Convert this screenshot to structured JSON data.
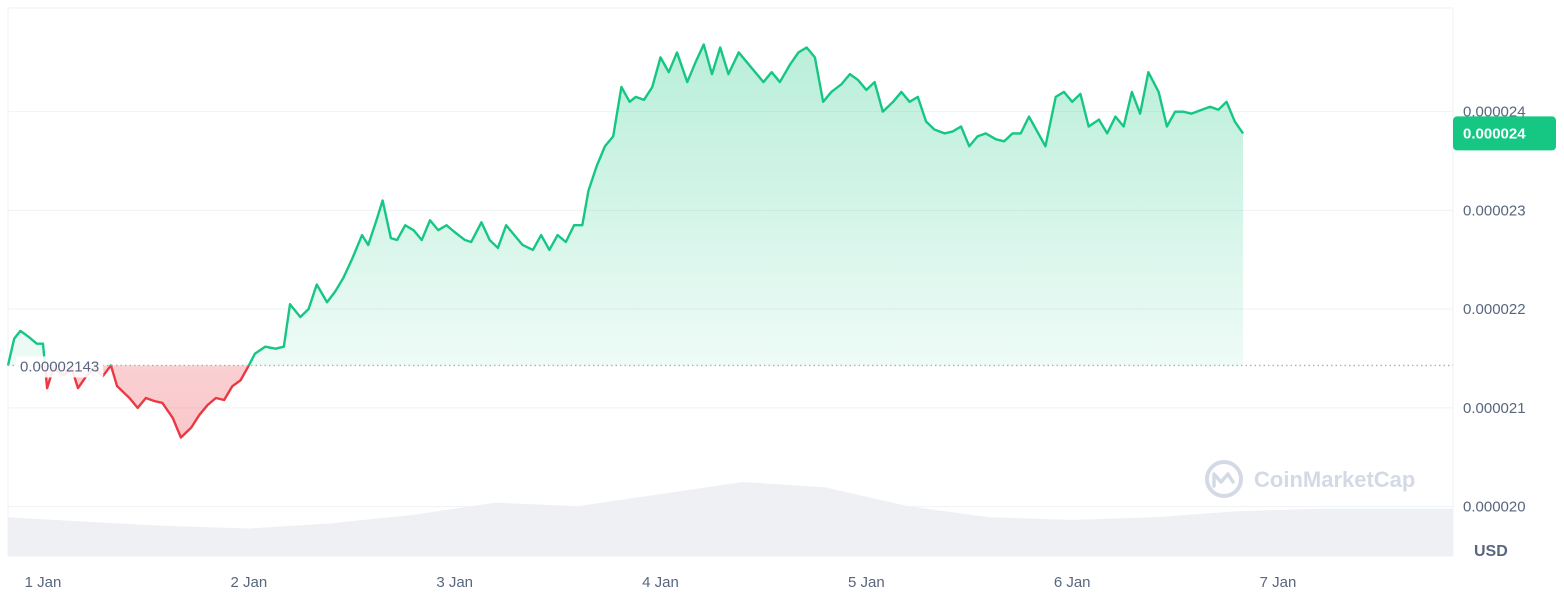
{
  "chart_data": {
    "type": "area",
    "x_labels": [
      "1 Jan",
      "2 Jan",
      "3 Jan",
      "4 Jan",
      "5 Jan",
      "6 Jan",
      "7 Jan"
    ],
    "x_range_days": [
      0.83,
      7.85
    ],
    "y_ticks": [
      "0.000020",
      "0.000021",
      "0.000022",
      "0.000023",
      "0.000024"
    ],
    "ylim": [
      1.95e-05,
      2.505e-05
    ],
    "reference_price": 2.143e-05,
    "reference_label": "0.00002143",
    "current_price_label": "0.000024",
    "unit": "USD",
    "grid": true,
    "price_series": [
      [
        0.83,
        2.143e-05
      ],
      [
        0.86,
        2.17e-05
      ],
      [
        0.89,
        2.178e-05
      ],
      [
        0.93,
        2.172e-05
      ],
      [
        0.97,
        2.165e-05
      ],
      [
        1.0,
        2.165e-05
      ],
      [
        1.02,
        2.12e-05
      ],
      [
        1.05,
        2.14e-05
      ],
      [
        1.1,
        2.133e-05
      ],
      [
        1.14,
        2.14e-05
      ],
      [
        1.17,
        2.12e-05
      ],
      [
        1.21,
        2.132e-05
      ],
      [
        1.25,
        2.14e-05
      ],
      [
        1.29,
        2.132e-05
      ],
      [
        1.33,
        2.143e-05
      ],
      [
        1.36,
        2.122e-05
      ],
      [
        1.42,
        2.11e-05
      ],
      [
        1.46,
        2.1e-05
      ],
      [
        1.5,
        2.11e-05
      ],
      [
        1.54,
        2.107e-05
      ],
      [
        1.58,
        2.105e-05
      ],
      [
        1.63,
        2.09e-05
      ],
      [
        1.67,
        2.07e-05
      ],
      [
        1.72,
        2.08e-05
      ],
      [
        1.76,
        2.093e-05
      ],
      [
        1.8,
        2.103e-05
      ],
      [
        1.84,
        2.11e-05
      ],
      [
        1.88,
        2.108e-05
      ],
      [
        1.92,
        2.122e-05
      ],
      [
        1.96,
        2.128e-05
      ],
      [
        2.0,
        2.143e-05
      ],
      [
        2.03,
        2.155e-05
      ],
      [
        2.08,
        2.162e-05
      ],
      [
        2.13,
        2.16e-05
      ],
      [
        2.17,
        2.162e-05
      ],
      [
        2.2,
        2.205e-05
      ],
      [
        2.25,
        2.192e-05
      ],
      [
        2.29,
        2.2e-05
      ],
      [
        2.33,
        2.225e-05
      ],
      [
        2.38,
        2.207e-05
      ],
      [
        2.42,
        2.218e-05
      ],
      [
        2.46,
        2.232e-05
      ],
      [
        2.5,
        2.25e-05
      ],
      [
        2.55,
        2.275e-05
      ],
      [
        2.58,
        2.265e-05
      ],
      [
        2.62,
        2.29e-05
      ],
      [
        2.65,
        2.31e-05
      ],
      [
        2.69,
        2.272e-05
      ],
      [
        2.72,
        2.27e-05
      ],
      [
        2.76,
        2.285e-05
      ],
      [
        2.8,
        2.28e-05
      ],
      [
        2.84,
        2.27e-05
      ],
      [
        2.88,
        2.29e-05
      ],
      [
        2.92,
        2.28e-05
      ],
      [
        2.96,
        2.285e-05
      ],
      [
        3.0,
        2.278e-05
      ],
      [
        3.05,
        2.27e-05
      ],
      [
        3.08,
        2.268e-05
      ],
      [
        3.13,
        2.288e-05
      ],
      [
        3.17,
        2.27e-05
      ],
      [
        3.21,
        2.262e-05
      ],
      [
        3.25,
        2.285e-05
      ],
      [
        3.29,
        2.275e-05
      ],
      [
        3.33,
        2.265e-05
      ],
      [
        3.38,
        2.26e-05
      ],
      [
        3.42,
        2.275e-05
      ],
      [
        3.46,
        2.26e-05
      ],
      [
        3.5,
        2.275e-05
      ],
      [
        3.54,
        2.268e-05
      ],
      [
        3.58,
        2.285e-05
      ],
      [
        3.62,
        2.285e-05
      ],
      [
        3.65,
        2.32e-05
      ],
      [
        3.69,
        2.345e-05
      ],
      [
        3.73,
        2.365e-05
      ],
      [
        3.77,
        2.375e-05
      ],
      [
        3.81,
        2.425e-05
      ],
      [
        3.85,
        2.41e-05
      ],
      [
        3.88,
        2.415e-05
      ],
      [
        3.92,
        2.412e-05
      ],
      [
        3.96,
        2.425e-05
      ],
      [
        4.0,
        2.455e-05
      ],
      [
        4.04,
        2.44e-05
      ],
      [
        4.08,
        2.46e-05
      ],
      [
        4.13,
        2.43e-05
      ],
      [
        4.17,
        2.45e-05
      ],
      [
        4.21,
        2.468e-05
      ],
      [
        4.25,
        2.438e-05
      ],
      [
        4.29,
        2.465e-05
      ],
      [
        4.33,
        2.438e-05
      ],
      [
        4.38,
        2.46e-05
      ],
      [
        4.42,
        2.45e-05
      ],
      [
        4.46,
        2.44e-05
      ],
      [
        4.5,
        2.43e-05
      ],
      [
        4.54,
        2.44e-05
      ],
      [
        4.58,
        2.43e-05
      ],
      [
        4.63,
        2.448e-05
      ],
      [
        4.67,
        2.46e-05
      ],
      [
        4.71,
        2.465e-05
      ],
      [
        4.75,
        2.455e-05
      ],
      [
        4.79,
        2.41e-05
      ],
      [
        4.83,
        2.42e-05
      ],
      [
        4.88,
        2.428e-05
      ],
      [
        4.92,
        2.438e-05
      ],
      [
        4.96,
        2.432e-05
      ],
      [
        5.0,
        2.422e-05
      ],
      [
        5.04,
        2.43e-05
      ],
      [
        5.08,
        2.4e-05
      ],
      [
        5.13,
        2.41e-05
      ],
      [
        5.17,
        2.42e-05
      ],
      [
        5.21,
        2.41e-05
      ],
      [
        5.25,
        2.415e-05
      ],
      [
        5.29,
        2.39e-05
      ],
      [
        5.33,
        2.382e-05
      ],
      [
        5.38,
        2.378e-05
      ],
      [
        5.42,
        2.38e-05
      ],
      [
        5.46,
        2.385e-05
      ],
      [
        5.5,
        2.365e-05
      ],
      [
        5.54,
        2.375e-05
      ],
      [
        5.58,
        2.378e-05
      ],
      [
        5.63,
        2.372e-05
      ],
      [
        5.67,
        2.37e-05
      ],
      [
        5.71,
        2.378e-05
      ],
      [
        5.75,
        2.378e-05
      ],
      [
        5.79,
        2.395e-05
      ],
      [
        5.83,
        2.38e-05
      ],
      [
        5.87,
        2.365e-05
      ],
      [
        5.92,
        2.415e-05
      ],
      [
        5.96,
        2.42e-05
      ],
      [
        6.0,
        2.41e-05
      ],
      [
        6.04,
        2.418e-05
      ],
      [
        6.08,
        2.385e-05
      ],
      [
        6.13,
        2.392e-05
      ],
      [
        6.17,
        2.378e-05
      ],
      [
        6.21,
        2.395e-05
      ],
      [
        6.25,
        2.385e-05
      ],
      [
        6.29,
        2.42e-05
      ],
      [
        6.33,
        2.398e-05
      ],
      [
        6.37,
        2.44e-05
      ],
      [
        6.42,
        2.42e-05
      ],
      [
        6.46,
        2.385e-05
      ],
      [
        6.5,
        2.4e-05
      ],
      [
        6.54,
        2.4e-05
      ],
      [
        6.58,
        2.398e-05
      ],
      [
        6.63,
        2.402e-05
      ],
      [
        6.67,
        2.405e-05
      ],
      [
        6.71,
        2.402e-05
      ],
      [
        6.75,
        2.41e-05
      ],
      [
        6.79,
        2.39e-05
      ],
      [
        6.83,
        2.378e-05
      ]
    ],
    "volume_profile": [
      [
        0.83,
        0.45
      ],
      [
        1.2,
        0.4
      ],
      [
        1.6,
        0.35
      ],
      [
        2.0,
        0.32
      ],
      [
        2.4,
        0.38
      ],
      [
        2.8,
        0.48
      ],
      [
        3.2,
        0.62
      ],
      [
        3.6,
        0.58
      ],
      [
        4.0,
        0.72
      ],
      [
        4.4,
        0.86
      ],
      [
        4.8,
        0.8
      ],
      [
        5.2,
        0.58
      ],
      [
        5.6,
        0.45
      ],
      [
        6.0,
        0.42
      ],
      [
        6.4,
        0.45
      ],
      [
        6.8,
        0.52
      ],
      [
        7.2,
        0.55
      ],
      [
        7.6,
        0.55
      ],
      [
        7.85,
        0.55
      ]
    ]
  },
  "watermark": {
    "text": "CoinMarketCap",
    "icon": "coinmarketcap-logo-icon"
  },
  "colors": {
    "up_line": "#16c784",
    "down_line": "#ea3943",
    "up_fill": "#16c784",
    "down_fill": "#ea3943",
    "price_tag_bg": "#16c784",
    "grid": "#eff2f5",
    "volume": "#eef0f3"
  }
}
